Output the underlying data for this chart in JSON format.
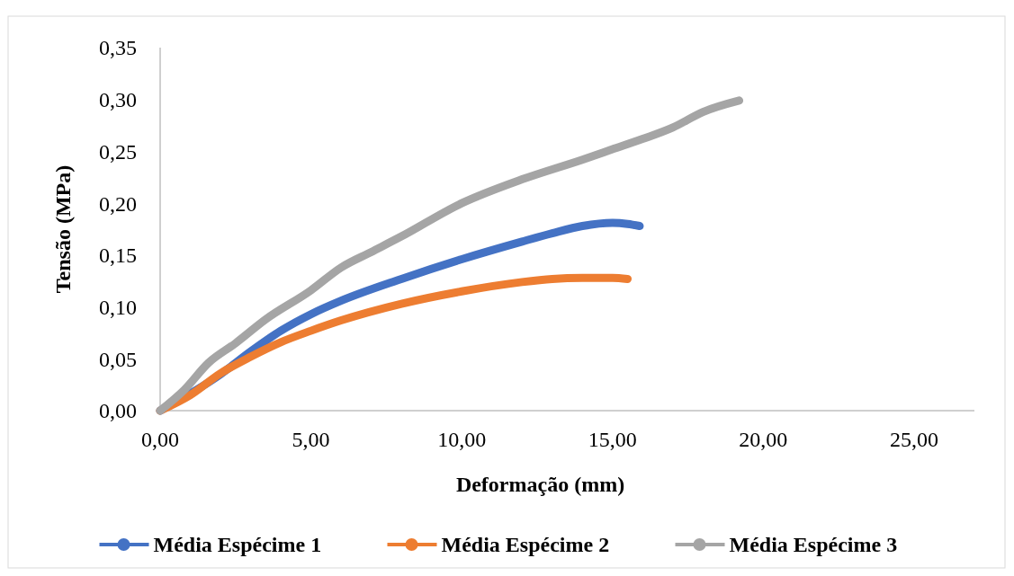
{
  "chart_data": {
    "type": "line",
    "xlabel": "Deformação (mm)",
    "ylabel": "Tensão (MPa)",
    "xlim": [
      0,
      27
    ],
    "xticks": [
      {
        "value": 0,
        "label": "0,00"
      },
      {
        "value": 5,
        "label": "5,00"
      },
      {
        "value": 10,
        "label": "10,00"
      },
      {
        "value": 15,
        "label": "15,00"
      },
      {
        "value": 20,
        "label": "20,00"
      },
      {
        "value": 25,
        "label": "25,00"
      }
    ],
    "ylim": [
      0,
      0.35
    ],
    "yticks": [
      {
        "value": 0,
        "label": "0,00"
      },
      {
        "value": 0.05,
        "label": "0,05"
      },
      {
        "value": 0.1,
        "label": "0,10"
      },
      {
        "value": 0.15,
        "label": "0,15"
      },
      {
        "value": 0.2,
        "label": "0,20"
      },
      {
        "value": 0.25,
        "label": "0,25"
      },
      {
        "value": 0.3,
        "label": "0,30"
      },
      {
        "value": 0.35,
        "label": "0,35"
      }
    ],
    "grid": false,
    "legend": "bottom",
    "marker": "none",
    "series": [
      {
        "name": "Média Espécime 1",
        "color": "#4472c4",
        "x": [
          0,
          1,
          2,
          3,
          4,
          5,
          6,
          8,
          10,
          12,
          13,
          14,
          15,
          15.5,
          15.9
        ],
        "values": [
          0,
          null,
          0.035,
          0.057,
          0.077,
          0.093,
          0.106,
          0.127,
          0.146,
          0.163,
          0.171,
          0.178,
          0.181,
          0.18,
          0.178
        ]
      },
      {
        "name": "Média Espécime 2",
        "color": "#ed7d31",
        "x": [
          0,
          1,
          2,
          3,
          4,
          5,
          6,
          8,
          10,
          12,
          13,
          14,
          15,
          15.5
        ],
        "values": [
          0,
          0.015,
          0.036,
          0.052,
          0.066,
          0.077,
          0.087,
          0.103,
          0.115,
          0.124,
          0.127,
          0.128,
          0.128,
          0.127
        ]
      },
      {
        "name": "Média Espécime 3",
        "color": "#a5a5a5",
        "x": [
          0,
          0.8,
          1.6,
          2.5,
          3.5,
          5,
          6,
          7,
          8,
          10,
          12,
          14,
          15,
          16,
          17,
          18,
          19.2
        ],
        "values": [
          0,
          0.02,
          0.046,
          0.065,
          0.088,
          0.116,
          0.138,
          0.153,
          0.168,
          0.2,
          0.223,
          0.242,
          0.252,
          0.262,
          0.273,
          0.288,
          0.299
        ]
      }
    ]
  }
}
